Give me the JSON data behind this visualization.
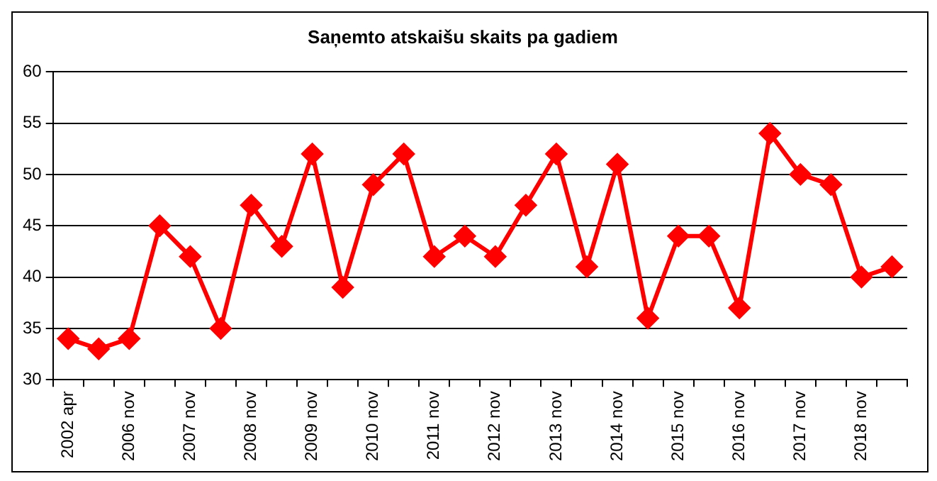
{
  "chart_data": {
    "type": "line",
    "title": "Saņemto atskaišu skaits pa gadiem",
    "categories": [
      "2002 apr",
      null,
      "2006 nov",
      null,
      "2007 nov",
      null,
      "2008 nov",
      null,
      "2009 nov",
      null,
      "2010 nov",
      null,
      "2011 nov",
      null,
      "2012 nov",
      null,
      "2013 nov",
      null,
      "2014 nov",
      null,
      "2015 nov",
      null,
      "2016 nov",
      null,
      "2017 nov",
      null,
      "2018 nov",
      null
    ],
    "series": [
      {
        "color": "#ff0000",
        "values": [
          34,
          33,
          34,
          45,
          42,
          35,
          47,
          43,
          52,
          39,
          49,
          52,
          42,
          44,
          42,
          47,
          52,
          41,
          51,
          36,
          44,
          44,
          37,
          54,
          50,
          49,
          40,
          41
        ]
      }
    ],
    "ylim": [
      30,
      60
    ],
    "yticks": [
      30,
      35,
      40,
      45,
      50,
      55,
      60
    ],
    "grid": "y",
    "legend": false,
    "marker": "diamond",
    "line_style": "solid"
  }
}
